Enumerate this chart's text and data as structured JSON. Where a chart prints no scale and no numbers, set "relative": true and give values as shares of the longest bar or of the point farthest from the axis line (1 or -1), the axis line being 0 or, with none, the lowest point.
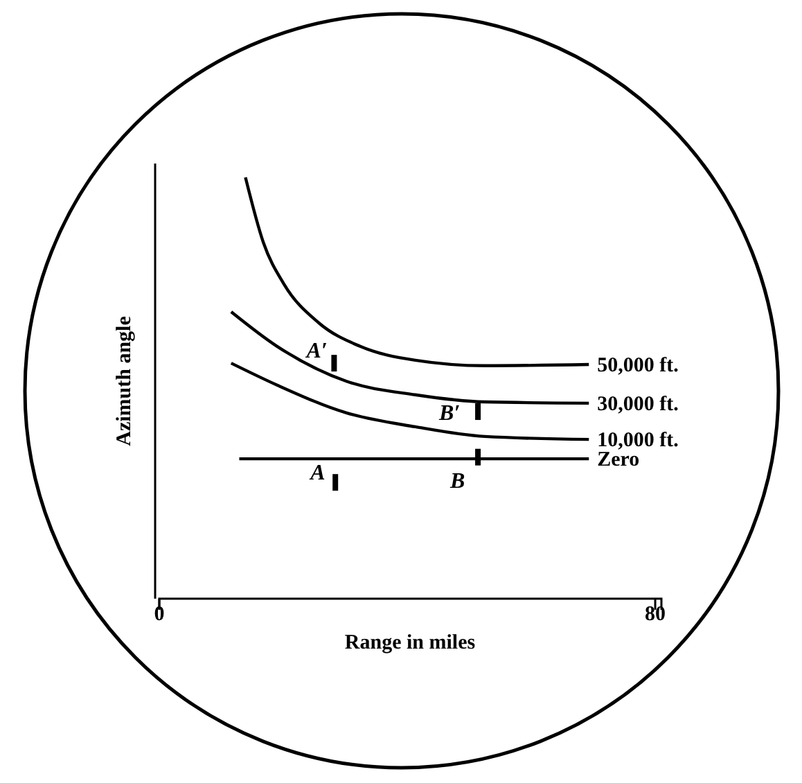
{
  "chart_data": {
    "type": "line",
    "relative": true,
    "xlabel": "Range in miles",
    "ylabel": "Azimuth angle",
    "xlim": [
      0,
      81
    ],
    "xticks": [
      0,
      80
    ],
    "legend": false,
    "marker": "none",
    "line_style": "solid",
    "series": [
      {
        "name": "50,000 ft.",
        "color": "#000000",
        "x": [
          13.9,
          16.8,
          20.1,
          25.7,
          32.4,
          41.3,
          52.5,
          69.3
        ],
        "values": [
          1.0,
          0.845,
          0.747,
          0.655,
          0.599,
          0.566,
          0.553,
          0.556
        ]
      },
      {
        "name": "30,000 ft.",
        "color": "#000000",
        "x": [
          11.6,
          19.0,
          30.2,
          41.3,
          52.5,
          69.3
        ],
        "values": [
          0.681,
          0.599,
          0.516,
          0.484,
          0.467,
          0.464
        ]
      },
      {
        "name": "10,000 ft.",
        "color": "#000000",
        "x": [
          11.6,
          19.0,
          30.2,
          41.3,
          52.5,
          69.3
        ],
        "values": [
          0.559,
          0.507,
          0.441,
          0.408,
          0.385,
          0.378
        ]
      },
      {
        "name": "Zero",
        "color": "#000000",
        "x": [
          12.9,
          69.3
        ],
        "values": [
          0.332,
          0.332
        ]
      }
    ],
    "annotations": [
      {
        "text": "A′",
        "x": 28.2,
        "y": 0.559
      },
      {
        "text": "B′",
        "x": 51.4,
        "y": 0.444
      },
      {
        "text": "A",
        "x": 28.4,
        "y": 0.276
      },
      {
        "text": "B",
        "x": 51.4,
        "y": 0.336
      }
    ]
  }
}
